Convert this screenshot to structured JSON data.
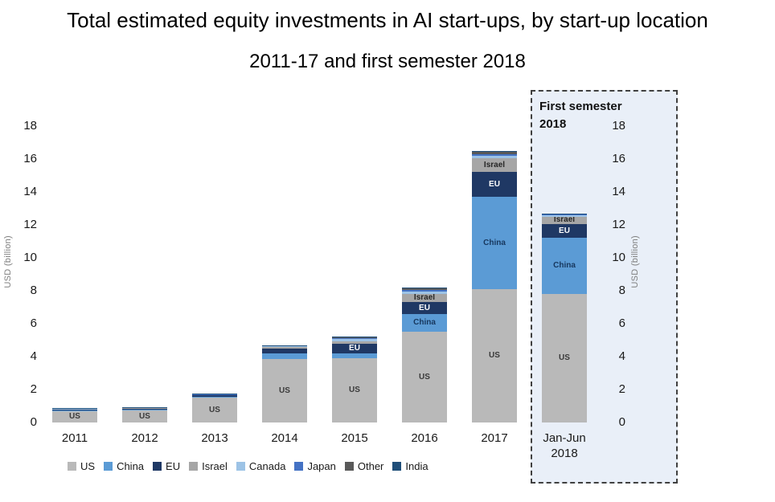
{
  "title": {
    "line1": "Total estimated equity investments in AI start-ups, by start-up location",
    "line2": "2011-17 and first semester 2018"
  },
  "axis": {
    "left_label": "USD (billion)",
    "right_label": "USD (billion)",
    "ticks": [
      0,
      2,
      4,
      6,
      8,
      10,
      12,
      14,
      16,
      18
    ],
    "max": 18
  },
  "annotation_box": {
    "label": "First semester 2018"
  },
  "legend_items": [
    "US",
    "China",
    "EU",
    "Israel",
    "Canada",
    "Japan",
    "Other",
    "India"
  ],
  "chart_data": {
    "type": "bar",
    "stacked": true,
    "title": "Total estimated equity investments in AI start-ups, by start-up location, 2011-17 and first semester 2018",
    "xlabel": "",
    "ylabel": "USD (billion)",
    "ylim": [
      0,
      18
    ],
    "grid": false,
    "legend_position": "bottom",
    "categories": [
      "2011",
      "2012",
      "2013",
      "2014",
      "2015",
      "2016",
      "2017",
      "Jan-Jun\n2018"
    ],
    "series": [
      {
        "name": "US",
        "color": "#b9b9b9",
        "label_color": "#3a3a3a",
        "values": [
          0.7,
          0.72,
          1.5,
          3.85,
          3.9,
          5.5,
          8.1,
          7.8
        ]
      },
      {
        "name": "China",
        "color": "#5b9bd5",
        "label_color": "#17375e",
        "values": [
          0.05,
          0.06,
          0.08,
          0.35,
          0.3,
          1.1,
          5.6,
          3.4
        ]
      },
      {
        "name": "EU",
        "color": "#1f3864",
        "label_color": "#ffffff",
        "values": [
          0.06,
          0.08,
          0.08,
          0.3,
          0.6,
          0.7,
          1.5,
          0.85
        ]
      },
      {
        "name": "Israel",
        "color": "#a6a6a6",
        "label_color": "#262626",
        "values": [
          0.02,
          0.03,
          0.03,
          0.08,
          0.15,
          0.5,
          0.85,
          0.45
        ]
      },
      {
        "name": "Canada",
        "color": "#9dc3e6",
        "label_color": "#262626",
        "values": [
          0.02,
          0.02,
          0.02,
          0.05,
          0.1,
          0.15,
          0.15,
          0.08
        ]
      },
      {
        "name": "Japan",
        "color": "#4472c4",
        "label_color": "#ffffff",
        "values": [
          0.01,
          0.02,
          0.02,
          0.03,
          0.05,
          0.1,
          0.1,
          0.05
        ]
      },
      {
        "name": "Other",
        "color": "#595959",
        "label_color": "#ffffff",
        "values": [
          0.01,
          0.01,
          0.01,
          0.02,
          0.05,
          0.1,
          0.15,
          0.05
        ]
      },
      {
        "name": "India",
        "color": "#1f4e79",
        "label_color": "#ffffff",
        "values": [
          0.01,
          0.01,
          0.01,
          0.02,
          0.05,
          0.05,
          0.05,
          0.02
        ]
      }
    ],
    "totals": [
      0.88,
      0.95,
      1.75,
      4.7,
      5.2,
      8.2,
      16.5,
      12.7
    ],
    "labeled_series": [
      "US",
      "China",
      "EU",
      "Israel"
    ]
  }
}
